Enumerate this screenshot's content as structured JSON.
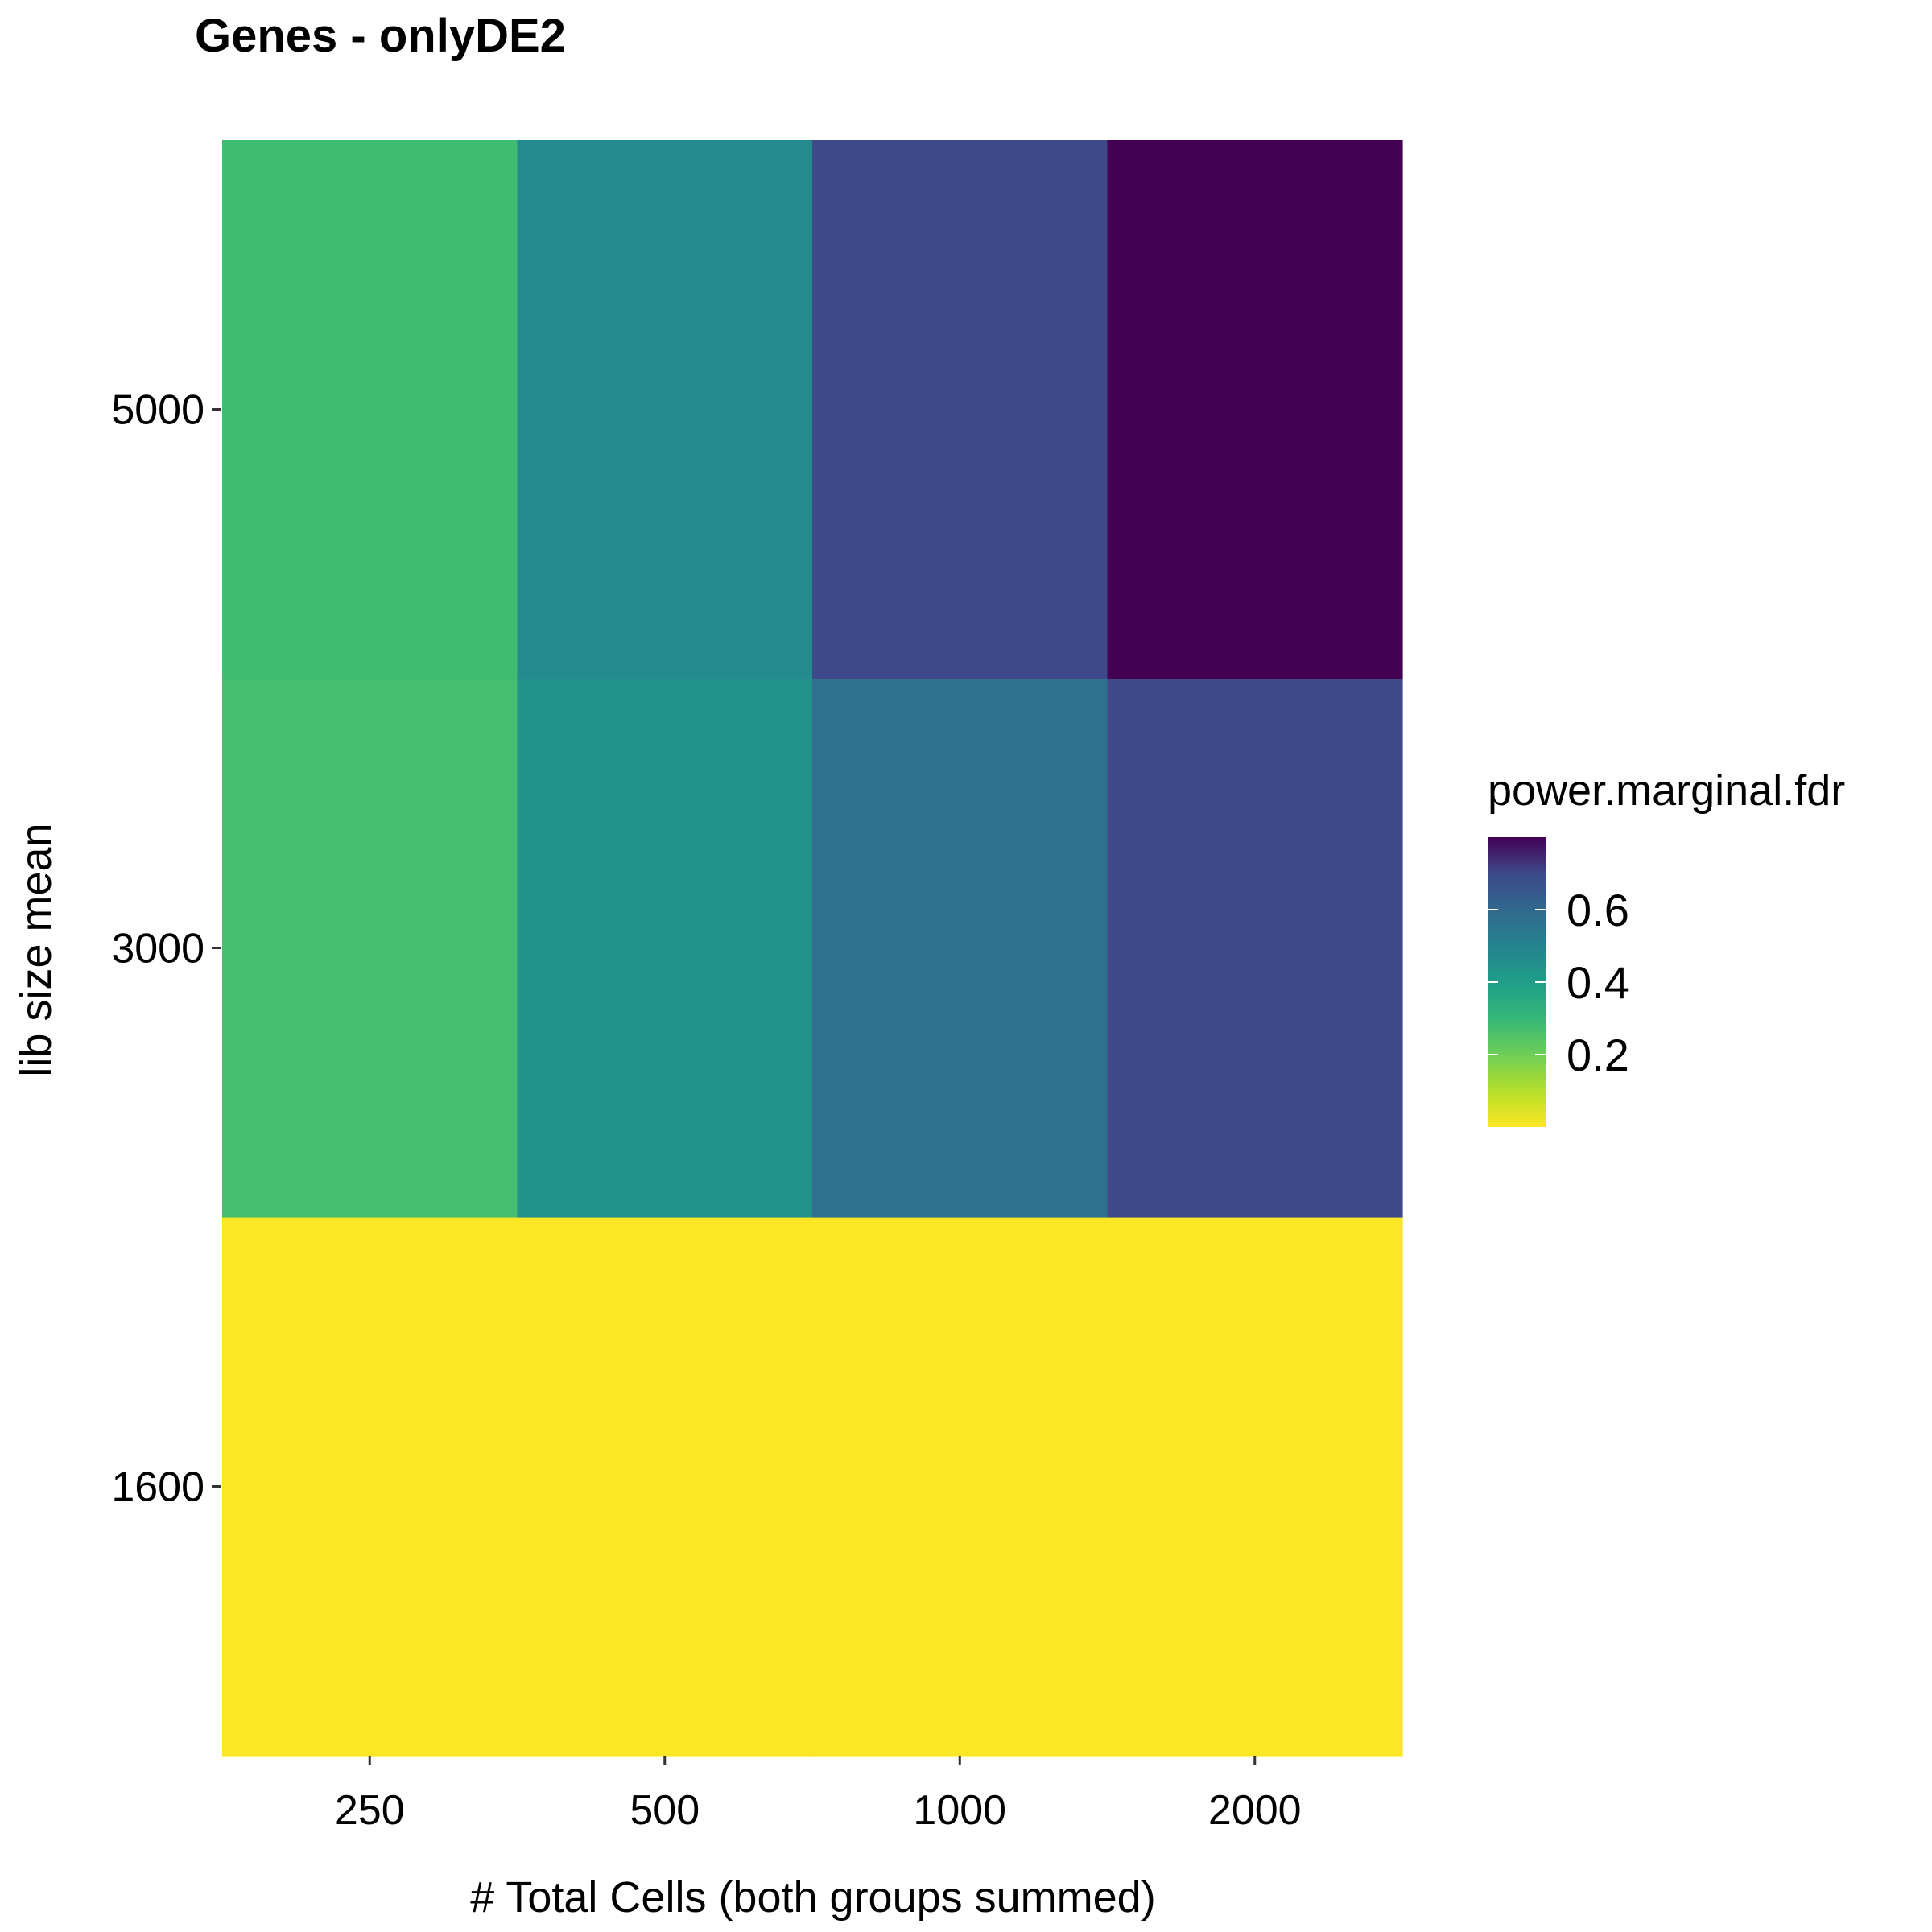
{
  "chart_data": {
    "type": "heatmap",
    "title": "Genes - onlyDE2",
    "xlabel": "# Total Cells (both groups summed)",
    "ylabel": "lib size mean",
    "x_categories": [
      "250",
      "500",
      "1000",
      "2000"
    ],
    "y_categories": [
      "1600",
      "3000",
      "5000"
    ],
    "values": [
      [
        0.0,
        0.0,
        0.0,
        0.0
      ],
      [
        0.27,
        0.44,
        0.57,
        0.7
      ],
      [
        0.28,
        0.47,
        0.7,
        0.8
      ]
    ],
    "colorbar": {
      "title": "power.marginal.fdr",
      "range": [
        0.0,
        0.8
      ],
      "ticks": [
        0.2,
        0.4,
        0.6
      ],
      "tick_labels": [
        "0.2",
        "0.4",
        "0.6"
      ],
      "colorscale": "viridis (reversed)",
      "low_color": "#fde725",
      "high_color": "#440154"
    },
    "grid": false,
    "legend_position": "right"
  }
}
